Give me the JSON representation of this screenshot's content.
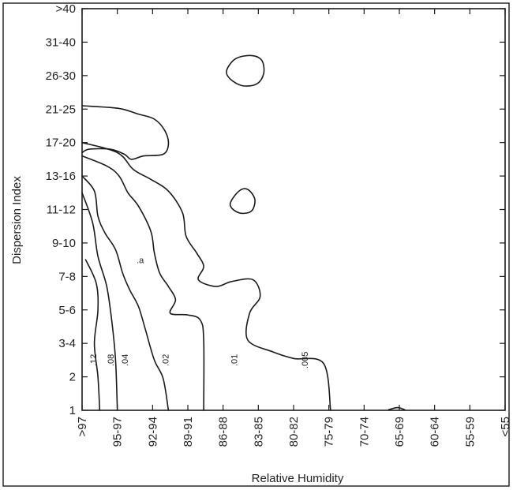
{
  "chart_data": {
    "type": "contour",
    "title": "",
    "xlabel": "Relative Humidity",
    "ylabel": "Dispersion Index",
    "x_categories": [
      ">97",
      "95-97",
      "92-94",
      "89-91",
      "86-88",
      "83-85",
      "80-82",
      "75-79",
      "70-74",
      "65-69",
      "60-64",
      "55-59",
      "<55"
    ],
    "y_categories": [
      "1",
      "2",
      "3-4",
      "5-6",
      "7-8",
      "9-10",
      "11-12",
      "13-16",
      "17-20",
      "21-25",
      "26-30",
      "31-40",
      ">40"
    ],
    "contour_levels": [
      {
        "label": ".12",
        "x": 0.4,
        "y": 1.5,
        "angle": -90
      },
      {
        "label": ".08",
        "x": 0.9,
        "y": 1.5,
        "angle": -90
      },
      {
        "label": ".04",
        "x": 1.3,
        "y": 1.5,
        "angle": -90
      },
      {
        "label": ".02",
        "x": 2.45,
        "y": 1.5,
        "angle": -90
      },
      {
        "label": ".01",
        "x": 4.4,
        "y": 1.5,
        "angle": -90
      },
      {
        "label": ".005",
        "x": 6.4,
        "y": 1.5,
        "angle": -90
      },
      {
        "label": ".a",
        "x": 1.65,
        "y": 4.4,
        "angle": 0
      }
    ],
    "contours": [
      {
        "level": ".12",
        "closed": false,
        "points": [
          [
            0.1,
            4.5
          ],
          [
            0.4,
            3.8
          ],
          [
            0.45,
            3.0
          ],
          [
            0.35,
            2.0
          ],
          [
            0.45,
            1.0
          ],
          [
            0.5,
            0
          ]
        ]
      },
      {
        "level": ".08",
        "closed": false,
        "points": [
          [
            0,
            6.5
          ],
          [
            0.3,
            5.6
          ],
          [
            0.45,
            4.6
          ],
          [
            0.7,
            3.7
          ],
          [
            0.85,
            2.6
          ],
          [
            0.95,
            1.5
          ],
          [
            1.0,
            0
          ]
        ]
      },
      {
        "level": ".04",
        "closed": false,
        "points": [
          [
            0,
            7.0
          ],
          [
            0.35,
            6.55
          ],
          [
            0.45,
            5.8
          ],
          [
            0.65,
            5.3
          ],
          [
            0.95,
            4.8
          ],
          [
            1.15,
            4.1
          ],
          [
            1.35,
            3.6
          ],
          [
            1.6,
            3.1
          ],
          [
            1.8,
            2.4
          ],
          [
            2.05,
            1.5
          ],
          [
            2.3,
            0.95
          ],
          [
            2.45,
            0
          ]
        ]
      },
      {
        "level": ".02",
        "closed": false,
        "points": [
          [
            0,
            7.6
          ],
          [
            0.7,
            7.3
          ],
          [
            1.05,
            7.0
          ],
          [
            1.3,
            6.5
          ],
          [
            1.6,
            6.1
          ],
          [
            1.95,
            5.35
          ],
          [
            2.05,
            4.7
          ],
          [
            2.2,
            4.1
          ],
          [
            2.45,
            3.7
          ],
          [
            2.65,
            3.3
          ],
          [
            2.5,
            2.9
          ],
          [
            3.0,
            2.85
          ],
          [
            3.35,
            2.7
          ],
          [
            3.45,
            2.1
          ],
          [
            3.45,
            0
          ]
        ]
      },
      {
        "level": ".01",
        "closed": false,
        "points": [
          [
            0,
            8.0
          ],
          [
            1.0,
            7.7
          ],
          [
            1.45,
            7.2
          ],
          [
            1.95,
            6.9
          ],
          [
            2.45,
            6.55
          ],
          [
            2.85,
            5.9
          ],
          [
            2.95,
            5.2
          ],
          [
            3.25,
            4.7
          ],
          [
            3.45,
            4.3
          ],
          [
            3.3,
            3.9
          ],
          [
            3.8,
            3.7
          ],
          [
            4.25,
            3.85
          ],
          [
            4.85,
            3.9
          ],
          [
            5.05,
            3.4
          ],
          [
            4.75,
            2.9
          ],
          [
            4.7,
            2.1
          ],
          [
            5.4,
            1.75
          ],
          [
            6.0,
            1.55
          ],
          [
            6.85,
            1.4
          ],
          [
            7.05,
            0
          ]
        ]
      },
      {
        "level": ".005",
        "closed": false,
        "points": [
          [
            0,
            9.1
          ],
          [
            0.75,
            9.05
          ],
          [
            1.15,
            9.0
          ],
          [
            1.6,
            8.85
          ],
          [
            2.05,
            8.7
          ],
          [
            2.35,
            8.35
          ],
          [
            2.45,
            7.95
          ],
          [
            2.3,
            7.65
          ],
          [
            1.75,
            7.6
          ],
          [
            1.4,
            7.5
          ],
          [
            1.2,
            7.65
          ],
          [
            0.8,
            7.8
          ],
          [
            0.2,
            7.8
          ],
          [
            0,
            7.7
          ]
        ]
      },
      {
        "level": ".005",
        "closed": true,
        "points": [
          [
            4.1,
            10.15
          ],
          [
            4.2,
            9.9
          ],
          [
            4.55,
            9.7
          ],
          [
            4.95,
            9.75
          ],
          [
            5.15,
            10.05
          ],
          [
            5.1,
            10.45
          ],
          [
            4.8,
            10.6
          ],
          [
            4.35,
            10.5
          ]
        ]
      },
      {
        "level": ".005",
        "closed": true,
        "points": [
          [
            4.2,
            6.15
          ],
          [
            4.45,
            5.9
          ],
          [
            4.8,
            5.95
          ],
          [
            4.9,
            6.3
          ],
          [
            4.7,
            6.6
          ],
          [
            4.45,
            6.55
          ]
        ]
      },
      {
        "level": ".005",
        "closed": false,
        "points": [
          [
            8.7,
            0.02
          ],
          [
            8.95,
            0.08
          ],
          [
            9.15,
            0.02
          ]
        ]
      }
    ],
    "grid": false,
    "legend": "none"
  }
}
